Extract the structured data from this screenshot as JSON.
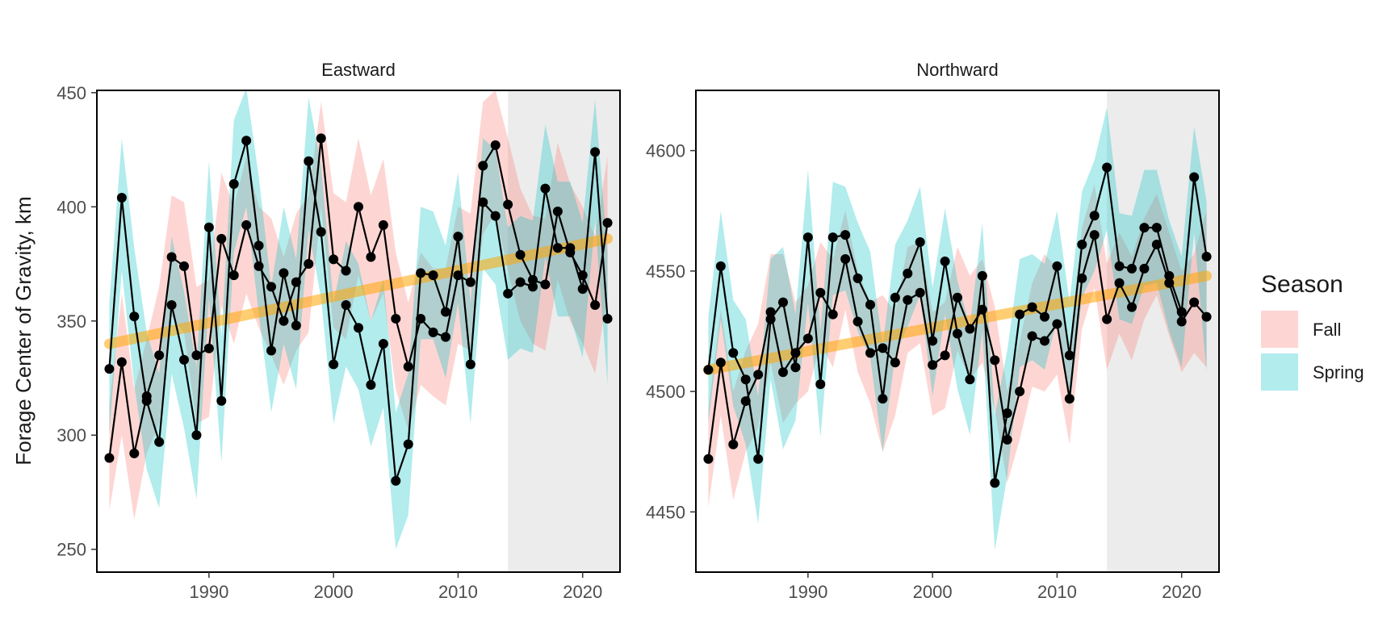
{
  "chart_data": {
    "type": "line",
    "ylabel": "Forage Center of Gravity, km",
    "legend": {
      "title": "Season",
      "position": "right",
      "entries": [
        {
          "label": "Fall",
          "color": "#F8766D"
        },
        {
          "label": "Spring",
          "color": "#00BFC4"
        }
      ]
    },
    "colors": {
      "line": "#000000",
      "trend": "#FFA500",
      "shade": "#D9D9D9"
    },
    "panels": [
      {
        "title": "Eastward",
        "xlim": [
          1981,
          2023
        ],
        "ylim": [
          240,
          451
        ],
        "xticks": [
          1990,
          2000,
          2010,
          2020
        ],
        "yticks": [
          250,
          300,
          350,
          400,
          450
        ],
        "shaded_region": [
          2014,
          2023
        ],
        "trend": {
          "x": [
            1982,
            2022
          ],
          "y": [
            340,
            386
          ]
        },
        "series": [
          {
            "name": "Fall",
            "x": [
              1982,
              1983,
              1984,
              1985,
              1986,
              1987,
              1988,
              1989,
              1990,
              1991,
              1992,
              1993,
              1994,
              1995,
              1996,
              1997,
              1998,
              1999,
              2000,
              2001,
              2002,
              2003,
              2004,
              2005,
              2006,
              2007,
              2008,
              2009,
              2010,
              2011,
              2012,
              2013,
              2014,
              2015,
              2016,
              2017,
              2018,
              2019,
              2020,
              2021,
              2022
            ],
            "y": [
              290,
              332,
              292,
              317,
              335,
              378,
              374,
              335,
              338,
              386,
              370,
              392,
              374,
              365,
              350,
              367,
              375,
              430,
              377,
              372,
              400,
              378,
              392,
              351,
              330,
              351,
              345,
              343,
              370,
              367,
              418,
              427,
              401,
              379,
              368,
              366,
              398,
              380,
              370,
              357,
              393
            ],
            "lower": [
              267,
              300,
              263,
              292,
              305,
              352,
              345,
              305,
              308,
              357,
              340,
              362,
              347,
              335,
              322,
              337,
              345,
              400,
              347,
              342,
              370,
              350,
              362,
              320,
              302,
              322,
              317,
              313,
              340,
              337,
              388,
              397,
              372,
              350,
              340,
              337,
              368,
              350,
              340,
              327,
              363
            ],
            "upper": [
              313,
              362,
              320,
              342,
              365,
              405,
              402,
              365,
              368,
              415,
              400,
              422,
              400,
              395,
              378,
              397,
              405,
              446,
              406,
              402,
              430,
              405,
              421,
              380,
              358,
              380,
              373,
              373,
              400,
              397,
              446,
              451,
              430,
              408,
              396,
              395,
              428,
              410,
              400,
              387,
              422
            ]
          },
          {
            "name": "Spring",
            "x": [
              1982,
              1983,
              1984,
              1985,
              1986,
              1987,
              1988,
              1989,
              1990,
              1991,
              1992,
              1993,
              1994,
              1995,
              1996,
              1997,
              1998,
              1999,
              2000,
              2001,
              2002,
              2003,
              2004,
              2005,
              2006,
              2007,
              2008,
              2009,
              2010,
              2011,
              2012,
              2013,
              2014,
              2015,
              2016,
              2017,
              2018,
              2019,
              2020,
              2021,
              2022
            ],
            "y": [
              329,
              404,
              352,
              315,
              297,
              357,
              333,
              300,
              391,
              315,
              410,
              429,
              383,
              337,
              371,
              348,
              420,
              389,
              331,
              357,
              347,
              322,
              340,
              280,
              296,
              371,
              370,
              354,
              387,
              331,
              402,
              396,
              362,
              367,
              365,
              408,
              382,
              382,
              364,
              424,
              351
            ],
            "lower": [
              300,
              372,
              322,
              285,
              268,
              327,
              303,
              272,
              360,
              288,
              380,
              400,
              353,
              310,
              340,
              320,
              390,
              360,
              305,
              330,
              320,
              295,
              312,
              250,
              265,
              342,
              342,
              325,
              358,
              305,
              373,
              366,
              333,
              338,
              336,
              378,
              352,
              352,
              334,
              394,
              322
            ],
            "upper": [
              358,
              430,
              382,
              345,
              327,
              387,
              363,
              330,
              420,
              343,
              438,
              452,
              413,
              365,
              400,
              377,
              448,
              418,
              358,
              385,
              375,
              350,
              368,
              310,
              327,
              400,
              398,
              383,
              415,
              358,
              430,
              425,
              391,
              396,
              394,
              436,
              411,
              411,
              393,
              447,
              380
            ]
          }
        ]
      },
      {
        "title": "Northward",
        "xlim": [
          1981,
          2023
        ],
        "ylim": [
          4425,
          4625
        ],
        "xticks": [
          1990,
          2000,
          2010,
          2020
        ],
        "yticks": [
          4450,
          4500,
          4550,
          4600
        ],
        "shaded_region": [
          2014,
          2023
        ],
        "trend": {
          "x": [
            1982,
            2022
          ],
          "y": [
            4509,
            4548
          ]
        },
        "series": [
          {
            "name": "Fall",
            "x": [
              1982,
              1983,
              1984,
              1985,
              1986,
              1987,
              1988,
              1989,
              1990,
              1991,
              1992,
              1993,
              1994,
              1995,
              1996,
              1997,
              1998,
              1999,
              2000,
              2001,
              2002,
              2003,
              2004,
              2005,
              2006,
              2007,
              2008,
              2009,
              2010,
              2011,
              2012,
              2013,
              2014,
              2015,
              2016,
              2017,
              2018,
              2019,
              2020,
              2021,
              2022
            ],
            "y": [
              4472,
              4512,
              4478,
              4496,
              4507,
              4533,
              4508,
              4516,
              4522,
              4541,
              4532,
              4555,
              4529,
              4516,
              4518,
              4512,
              4538,
              4541,
              4511,
              4515,
              4539,
              4526,
              4534,
              4513,
              4480,
              4500,
              4523,
              4521,
              4528,
              4497,
              4547,
              4565,
              4530,
              4545,
              4535,
              4551,
              4561,
              4545,
              4529,
              4537,
              4531
            ],
            "lower": [
              4452,
              4490,
              4455,
              4475,
              4485,
              4512,
              4487,
              4495,
              4500,
              4520,
              4510,
              4534,
              4508,
              4495,
              4475,
              4490,
              4516,
              4520,
              4490,
              4493,
              4517,
              4505,
              4512,
              4492,
              4462,
              4480,
              4502,
              4500,
              4507,
              4478,
              4526,
              4543,
              4509,
              4524,
              4513,
              4530,
              4540,
              4523,
              4508,
              4516,
              4510
            ],
            "upper": [
              4492,
              4534,
              4500,
              4517,
              4528,
              4557,
              4557,
              4537,
              4544,
              4562,
              4555,
              4575,
              4550,
              4537,
              4540,
              4533,
              4560,
              4562,
              4533,
              4537,
              4560,
              4548,
              4555,
              4535,
              4500,
              4521,
              4545,
              4557,
              4551,
              4518,
              4568,
              4586,
              4553,
              4566,
              4556,
              4572,
              4582,
              4566,
              4550,
              4557,
              4575
            ]
          },
          {
            "name": "Spring",
            "x": [
              1982,
              1983,
              1984,
              1985,
              1986,
              1987,
              1988,
              1989,
              1990,
              1991,
              1992,
              1993,
              1994,
              1995,
              1996,
              1997,
              1998,
              1999,
              2000,
              2001,
              2002,
              2003,
              2004,
              2005,
              2006,
              2007,
              2008,
              2009,
              2010,
              2011,
              2012,
              2013,
              2014,
              2015,
              2016,
              2017,
              2018,
              2019,
              2020,
              2021,
              2022
            ],
            "y": [
              4509,
              4552,
              4516,
              4505,
              4472,
              4530,
              4537,
              4510,
              4564,
              4503,
              4564,
              4565,
              4547,
              4536,
              4497,
              4539,
              4549,
              4562,
              4521,
              4554,
              4524,
              4505,
              4548,
              4462,
              4491,
              4532,
              4535,
              4531,
              4552,
              4515,
              4561,
              4573,
              4593,
              4552,
              4551,
              4568,
              4568,
              4548,
              4533,
              4589,
              4556
            ],
            "lower": [
              4487,
              4530,
              4494,
              4478,
              4445,
              4505,
              4476,
              4488,
              4537,
              4481,
              4540,
              4542,
              4525,
              4514,
              4475,
              4515,
              4527,
              4540,
              4498,
              4532,
              4501,
              4482,
              4525,
              4434,
              4465,
              4510,
              4513,
              4509,
              4530,
              4493,
              4539,
              4550,
              4567,
              4530,
              4528,
              4544,
              4545,
              4525,
              4510,
              4566,
              4508
            ],
            "upper": [
              4531,
              4575,
              4538,
              4530,
              4498,
              4555,
              4560,
              4532,
              4592,
              4525,
              4587,
              4585,
              4570,
              4558,
              4519,
              4561,
              4571,
              4585,
              4543,
              4576,
              4546,
              4527,
              4570,
              4490,
              4517,
              4555,
              4557,
              4553,
              4575,
              4537,
              4583,
              4596,
              4618,
              4574,
              4573,
              4592,
              4592,
              4571,
              4556,
              4610,
              4579
            ]
          }
        ]
      }
    ]
  }
}
